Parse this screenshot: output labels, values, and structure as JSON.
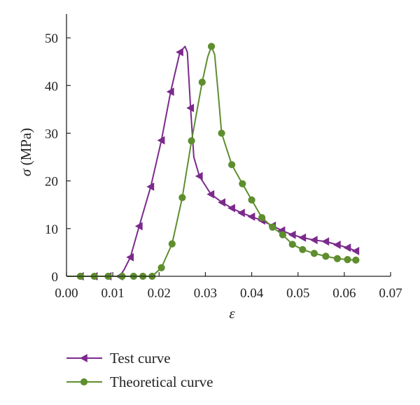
{
  "chart_data": {
    "type": "line",
    "title": "",
    "xlabel": "ε",
    "ylabel_symbol": "σ",
    "ylabel_unit": "(MPa)",
    "xlim": [
      0.0,
      0.07
    ],
    "ylim": [
      0,
      55
    ],
    "x_ticks": [
      0.0,
      0.01,
      0.02,
      0.03,
      0.04,
      0.05,
      0.06,
      0.07
    ],
    "x_tick_labels": [
      "0.00",
      "0.01",
      "0.02",
      "0.03",
      "0.04",
      "0.05",
      "0.06",
      "0.07"
    ],
    "y_ticks": [
      0,
      10,
      20,
      30,
      40,
      50
    ],
    "y_tick_labels": [
      "0",
      "10",
      "20",
      "30",
      "40",
      "50"
    ],
    "grid": false,
    "legend_position": "bottom-left, below plot",
    "series": [
      {
        "name": "Test curve",
        "color": "#7b2a8c",
        "marker": "left-triangle",
        "line": [
          [
            0.0,
            0
          ],
          [
            0.003,
            0
          ],
          [
            0.006,
            0
          ],
          [
            0.009,
            0
          ],
          [
            0.0115,
            0
          ],
          [
            0.0125,
            1.5
          ],
          [
            0.0138,
            4.0
          ],
          [
            0.0157,
            10.5
          ],
          [
            0.0182,
            18.8
          ],
          [
            0.0205,
            28.5
          ],
          [
            0.0225,
            38.7
          ],
          [
            0.0245,
            47.0
          ],
          [
            0.0256,
            48.2
          ],
          [
            0.0261,
            47.0
          ],
          [
            0.0268,
            35.3
          ],
          [
            0.0275,
            25.0
          ],
          [
            0.0287,
            21.0
          ],
          [
            0.0312,
            17.2
          ],
          [
            0.0336,
            15.5
          ],
          [
            0.0357,
            14.3
          ],
          [
            0.0378,
            13.3
          ],
          [
            0.04,
            12.5
          ],
          [
            0.0422,
            11.7
          ],
          [
            0.0445,
            10.6
          ],
          [
            0.0465,
            9.6
          ],
          [
            0.0488,
            8.7
          ],
          [
            0.051,
            8.1
          ],
          [
            0.0535,
            7.6
          ],
          [
            0.056,
            7.3
          ],
          [
            0.0585,
            6.6
          ],
          [
            0.0607,
            6.0
          ],
          [
            0.0625,
            5.3
          ]
        ],
        "markers": [
          [
            0.003,
            0
          ],
          [
            0.006,
            0
          ],
          [
            0.009,
            0
          ],
          [
            0.0115,
            0
          ],
          [
            0.0138,
            4.0
          ],
          [
            0.0157,
            10.5
          ],
          [
            0.0182,
            18.8
          ],
          [
            0.0205,
            28.5
          ],
          [
            0.0225,
            38.7
          ],
          [
            0.0245,
            47.0
          ],
          [
            0.0268,
            35.3
          ],
          [
            0.0287,
            21.0
          ],
          [
            0.0312,
            17.2
          ],
          [
            0.0336,
            15.5
          ],
          [
            0.0357,
            14.3
          ],
          [
            0.0378,
            13.3
          ],
          [
            0.04,
            12.5
          ],
          [
            0.0422,
            11.7
          ],
          [
            0.0445,
            10.6
          ],
          [
            0.0465,
            9.6
          ],
          [
            0.0488,
            8.7
          ],
          [
            0.051,
            8.1
          ],
          [
            0.0535,
            7.6
          ],
          [
            0.056,
            7.3
          ],
          [
            0.0585,
            6.6
          ],
          [
            0.0607,
            6.0
          ],
          [
            0.0625,
            5.3
          ]
        ]
      },
      {
        "name": "Theoretical curve",
        "color": "#5e8e2e",
        "marker": "circle",
        "line": [
          [
            0.0,
            0
          ],
          [
            0.003,
            0
          ],
          [
            0.006,
            0
          ],
          [
            0.009,
            0
          ],
          [
            0.012,
            0
          ],
          [
            0.0145,
            0
          ],
          [
            0.0165,
            0
          ],
          [
            0.0185,
            0
          ],
          [
            0.0205,
            1.8
          ],
          [
            0.0228,
            6.8
          ],
          [
            0.025,
            16.5
          ],
          [
            0.027,
            28.4
          ],
          [
            0.0293,
            40.7
          ],
          [
            0.0305,
            46.0
          ],
          [
            0.0313,
            48.2
          ],
          [
            0.032,
            46.5
          ],
          [
            0.0328,
            38.0
          ],
          [
            0.0335,
            30.0
          ],
          [
            0.0357,
            23.4
          ],
          [
            0.038,
            19.4
          ],
          [
            0.04,
            16.0
          ],
          [
            0.0422,
            12.3
          ],
          [
            0.0445,
            10.3
          ],
          [
            0.0467,
            8.7
          ],
          [
            0.0488,
            6.7
          ],
          [
            0.051,
            5.6
          ],
          [
            0.0535,
            4.8
          ],
          [
            0.056,
            4.2
          ],
          [
            0.0585,
            3.7
          ],
          [
            0.0607,
            3.5
          ],
          [
            0.0625,
            3.4
          ]
        ],
        "markers": [
          [
            0.003,
            0
          ],
          [
            0.006,
            0
          ],
          [
            0.009,
            0
          ],
          [
            0.012,
            0
          ],
          [
            0.0145,
            0
          ],
          [
            0.0165,
            0
          ],
          [
            0.0185,
            0
          ],
          [
            0.0205,
            1.8
          ],
          [
            0.0228,
            6.8
          ],
          [
            0.025,
            16.5
          ],
          [
            0.027,
            28.4
          ],
          [
            0.0293,
            40.7
          ],
          [
            0.0313,
            48.2
          ],
          [
            0.0335,
            30.0
          ],
          [
            0.0357,
            23.4
          ],
          [
            0.038,
            19.4
          ],
          [
            0.04,
            16.0
          ],
          [
            0.0422,
            12.3
          ],
          [
            0.0445,
            10.3
          ],
          [
            0.0467,
            8.7
          ],
          [
            0.0488,
            6.7
          ],
          [
            0.051,
            5.6
          ],
          [
            0.0535,
            4.8
          ],
          [
            0.056,
            4.2
          ],
          [
            0.0585,
            3.7
          ],
          [
            0.0607,
            3.5
          ],
          [
            0.0625,
            3.4
          ]
        ]
      }
    ]
  }
}
